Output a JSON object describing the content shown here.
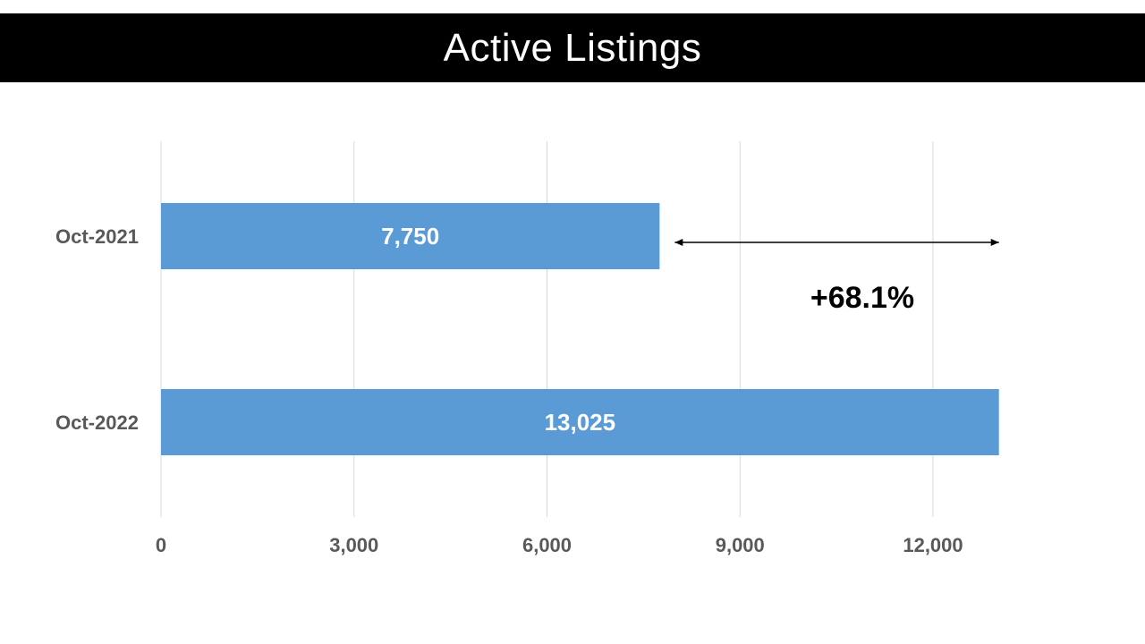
{
  "chart_data": {
    "type": "bar",
    "orientation": "horizontal",
    "title": "Active Listings",
    "categories": [
      "Oct-2021",
      "Oct-2022"
    ],
    "values": [
      7750,
      13025
    ],
    "data_labels": [
      "7,750",
      "13,025"
    ],
    "xlim": [
      0,
      15000
    ],
    "ticks": [
      0,
      3000,
      6000,
      9000,
      12000
    ],
    "tick_labels": [
      "0",
      "3,000",
      "6,000",
      "9,000",
      "12,000"
    ],
    "grid": true,
    "legend": "none",
    "annotation": "+68.1%",
    "bar_color": "#5B9BD5"
  }
}
